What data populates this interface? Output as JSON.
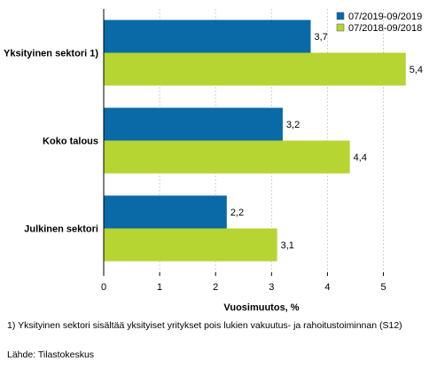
{
  "chart_data": {
    "type": "bar",
    "orientation": "horizontal",
    "categories": [
      "Yksityinen sektori 1)",
      "Koko talous",
      "Julkinen sektori"
    ],
    "series": [
      {
        "name": "07/2019-09/2019",
        "values": [
          3.7,
          3.2,
          2.2
        ],
        "color": "#0a6aa8"
      },
      {
        "name": "07/2018-09/2018",
        "values": [
          5.4,
          4.4,
          3.1
        ],
        "color": "#b6d432"
      }
    ],
    "value_labels": [
      [
        "3,7",
        "3,2",
        "2,2"
      ],
      [
        "5,4",
        "4,4",
        "3,1"
      ]
    ],
    "xlabel": "Vuosimuutos, %",
    "ylabel": "",
    "xlim": [
      0,
      5.8
    ],
    "xticks": [
      "0",
      "1",
      "2",
      "3",
      "4",
      "5"
    ],
    "grid": "vertical",
    "legend_position": "top-right"
  },
  "footnotes": {
    "note": "1) Yksityinen sektori sisältää yksityiset yritykset pois lukien vakuutus- ja rahoitustoiminnan (S12)",
    "source": "Lähde: Tilastokeskus"
  }
}
